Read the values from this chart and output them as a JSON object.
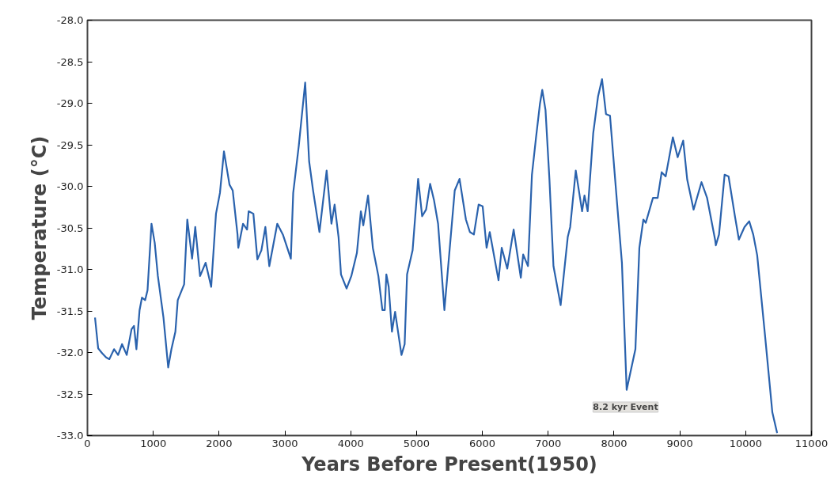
{
  "chart_data": {
    "type": "line",
    "xlabel": "Years Before Present(1950)",
    "ylabel": "Temperature (°C)",
    "xlim": [
      0,
      11000
    ],
    "ylim": [
      -33.0,
      -28.0
    ],
    "xticks": [
      0,
      1000,
      2000,
      3000,
      4000,
      5000,
      6000,
      7000,
      8000,
      9000,
      10000,
      11000
    ],
    "yticks": [
      {
        "value": -28.0,
        "label": "-28.0"
      },
      {
        "value": -28.5,
        "label": "-28.5"
      },
      {
        "value": -29.0,
        "label": "-29.0"
      },
      {
        "value": -29.5,
        "label": "-29.5"
      },
      {
        "value": -30.0,
        "label": "-30.0"
      },
      {
        "value": -30.5,
        "label": "-30.5"
      },
      {
        "value": -31.0,
        "label": "-31.0"
      },
      {
        "value": -31.5,
        "label": "-31.5"
      },
      {
        "value": -32.0,
        "label": "-32.0"
      },
      {
        "value": -32.5,
        "label": "-32.5"
      },
      {
        "value": -33.0,
        "label": "-33.0"
      }
    ],
    "grid": false,
    "marker": "none",
    "line_style": "solid",
    "annotations": [
      "8.2 kyr Event"
    ],
    "series": [
      {
        "color": "#2a62ad",
        "x": [
          115,
          163,
          224,
          284,
          333,
          405,
          466,
          526,
          597,
          670,
          707,
          744,
          792,
          828,
          877,
          913,
          973,
          1022,
          1070,
          1155,
          1227,
          1276,
          1336,
          1372,
          1469,
          1517,
          1590,
          1638,
          1711,
          1795,
          1880,
          1953,
          2013,
          2074,
          2158,
          2207,
          2280,
          2292,
          2364,
          2425,
          2449,
          2521,
          2582,
          2643,
          2703,
          2763,
          2884,
          2969,
          3090,
          3126,
          3211,
          3308,
          3368,
          3428,
          3525,
          3634,
          3707,
          3755,
          3815,
          3852,
          3937,
          4009,
          4094,
          4154,
          4191,
          4263,
          4336,
          4420,
          4481,
          4517,
          4541,
          4577,
          4626,
          4674,
          4771,
          4819,
          4856,
          4940,
          5024,
          5085,
          5145,
          5206,
          5266,
          5327,
          5423,
          5580,
          5653,
          5750,
          5810,
          5871,
          5943,
          6004,
          6064,
          6112,
          6245,
          6294,
          6378,
          6475,
          6584,
          6620,
          6693,
          6753,
          6814,
          6874,
          6910,
          6959,
          7019,
          7080,
          7189,
          7297,
          7334,
          7419,
          7515,
          7551,
          7600,
          7684,
          7757,
          7818,
          7878,
          7939,
          8047,
          8120,
          8192,
          8325,
          8385,
          8446,
          8482,
          8591,
          8663,
          8724,
          8785,
          8894,
          8967,
          9051,
          9112,
          9209,
          9329,
          9414,
          9535,
          9547,
          9595,
          9680,
          9740,
          9837,
          9897,
          9982,
          10054,
          10115,
          10175,
          10296,
          10405,
          10478
        ],
        "values": [
          -31.58,
          -31.95,
          -32.01,
          -32.06,
          -32.08,
          -31.96,
          -32.03,
          -31.9,
          -32.03,
          -31.72,
          -31.68,
          -31.96,
          -31.49,
          -31.34,
          -31.37,
          -31.25,
          -30.45,
          -30.68,
          -31.08,
          -31.58,
          -32.18,
          -31.96,
          -31.75,
          -31.37,
          -31.18,
          -30.4,
          -30.87,
          -30.49,
          -31.08,
          -30.92,
          -31.21,
          -30.33,
          -30.08,
          -29.58,
          -29.98,
          -30.05,
          -30.58,
          -30.74,
          -30.45,
          -30.52,
          -30.3,
          -30.33,
          -30.88,
          -30.77,
          -30.49,
          -30.96,
          -30.45,
          -30.58,
          -30.87,
          -30.08,
          -29.51,
          -28.75,
          -29.7,
          -30.05,
          -30.55,
          -29.81,
          -30.45,
          -30.22,
          -30.61,
          -31.06,
          -31.23,
          -31.08,
          -30.8,
          -30.3,
          -30.47,
          -30.11,
          -30.74,
          -31.08,
          -31.49,
          -31.49,
          -31.06,
          -31.21,
          -31.75,
          -31.51,
          -32.03,
          -31.9,
          -31.06,
          -30.77,
          -29.91,
          -30.36,
          -30.28,
          -29.97,
          -30.17,
          -30.45,
          -31.49,
          -30.05,
          -29.91,
          -30.4,
          -30.55,
          -30.58,
          -30.22,
          -30.24,
          -30.74,
          -30.55,
          -31.13,
          -30.74,
          -30.99,
          -30.52,
          -31.1,
          -30.82,
          -30.96,
          -29.86,
          -29.42,
          -29.01,
          -28.84,
          -29.08,
          -29.92,
          -30.96,
          -31.43,
          -30.61,
          -30.49,
          -29.81,
          -30.3,
          -30.11,
          -30.3,
          -29.36,
          -28.92,
          -28.71,
          -29.13,
          -29.15,
          -30.21,
          -30.92,
          -32.45,
          -31.96,
          -30.74,
          -30.4,
          -30.44,
          -30.14,
          -30.14,
          -29.83,
          -29.88,
          -29.41,
          -29.65,
          -29.45,
          -29.92,
          -30.28,
          -29.95,
          -30.14,
          -30.64,
          -30.71,
          -30.58,
          -29.86,
          -29.88,
          -30.36,
          -30.64,
          -30.49,
          -30.42,
          -30.58,
          -30.83,
          -31.81,
          -32.72,
          -32.97
        ]
      }
    ]
  }
}
